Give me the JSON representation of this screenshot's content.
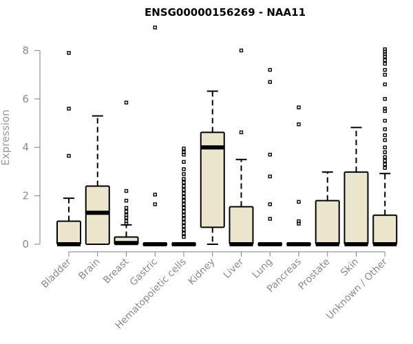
{
  "chart_data": {
    "type": "boxplot",
    "title": "ENSG00000156269 - NAA11",
    "ylabel": "Expression",
    "xlabel": "",
    "ylim": [
      0,
      9
    ],
    "yticks": [
      0,
      2,
      4,
      6,
      8
    ],
    "grid": false,
    "legend": "none",
    "box_fill": "#ece6cd",
    "categories": [
      "Bladder",
      "Brain",
      "Breast",
      "Gastric",
      "Hematopoietic cells",
      "Kidney",
      "Liver",
      "Lung",
      "Pancreas",
      "Prostate",
      "Skin",
      "Unknown / Other"
    ],
    "boxes": [
      {
        "q1": 0,
        "median": 0,
        "q3": 0.95,
        "whisker_low": 0,
        "whisker_high": 1.9,
        "outliers": [
          3.65,
          5.6,
          7.9
        ]
      },
      {
        "q1": 0,
        "median": 1.3,
        "q3": 2.4,
        "whisker_low": 0,
        "whisker_high": 5.3,
        "outliers": []
      },
      {
        "q1": 0,
        "median": 0.05,
        "q3": 0.3,
        "whisker_low": 0,
        "whisker_high": 0.8,
        "outliers": [
          0.85,
          0.95,
          1.1,
          1.2,
          1.35,
          1.5,
          1.8,
          2.2,
          5.85
        ]
      },
      {
        "q1": 0,
        "median": 0,
        "q3": 0,
        "whisker_low": 0,
        "whisker_high": 0,
        "outliers": [
          1.65,
          2.05,
          8.95
        ]
      },
      {
        "q1": 0,
        "median": 0,
        "q3": 0,
        "whisker_low": 0,
        "whisker_high": 0,
        "outliers": [
          0.3,
          0.45,
          0.6,
          0.75,
          0.9,
          1.05,
          1.2,
          1.35,
          1.5,
          1.65,
          1.8,
          1.95,
          2.1,
          2.25,
          2.4,
          2.55,
          2.7,
          2.9,
          3.1,
          3.4,
          3.7,
          3.8,
          3.95
        ]
      },
      {
        "q1": 0.7,
        "median": 4.0,
        "q3": 4.62,
        "whisker_low": 0,
        "whisker_high": 6.32,
        "outliers": []
      },
      {
        "q1": 0,
        "median": 0,
        "q3": 1.55,
        "whisker_low": 0,
        "whisker_high": 3.5,
        "outliers": [
          4.62,
          8.0
        ]
      },
      {
        "q1": 0,
        "median": 0,
        "q3": 0,
        "whisker_low": 0,
        "whisker_high": 0,
        "outliers": [
          1.05,
          1.65,
          2.8,
          3.7,
          6.7,
          7.2
        ]
      },
      {
        "q1": 0,
        "median": 0,
        "q3": 0,
        "whisker_low": 0,
        "whisker_high": 0,
        "outliers": [
          0.85,
          0.95,
          1.75,
          4.95,
          5.65
        ]
      },
      {
        "q1": 0,
        "median": 0,
        "q3": 1.8,
        "whisker_low": 0,
        "whisker_high": 2.98,
        "outliers": []
      },
      {
        "q1": 0,
        "median": 0,
        "q3": 2.98,
        "whisker_low": 0,
        "whisker_high": 4.82,
        "outliers": []
      },
      {
        "q1": 0,
        "median": 0,
        "q3": 1.2,
        "whisker_low": 0,
        "whisker_high": 2.92,
        "outliers": [
          3.15,
          3.3,
          3.45,
          3.6,
          3.8,
          4.0,
          4.3,
          4.5,
          4.75,
          5.1,
          5.5,
          5.6,
          6.0,
          6.6,
          7.0,
          7.2,
          7.45,
          7.6,
          7.75,
          7.85,
          7.95,
          8.05
        ]
      }
    ]
  }
}
